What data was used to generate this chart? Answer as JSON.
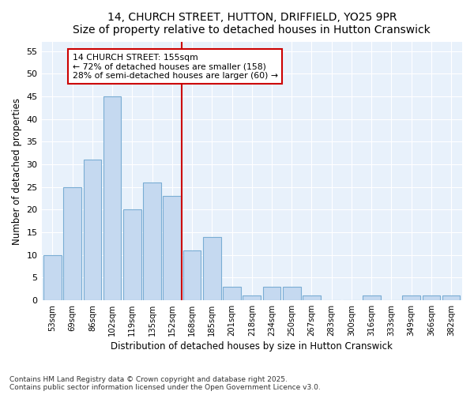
{
  "title1": "14, CHURCH STREET, HUTTON, DRIFFIELD, YO25 9PR",
  "title2": "Size of property relative to detached houses in Hutton Cranswick",
  "xlabel": "Distribution of detached houses by size in Hutton Cranswick",
  "ylabel": "Number of detached properties",
  "categories": [
    "53sqm",
    "69sqm",
    "86sqm",
    "102sqm",
    "119sqm",
    "135sqm",
    "152sqm",
    "168sqm",
    "185sqm",
    "201sqm",
    "218sqm",
    "234sqm",
    "250sqm",
    "267sqm",
    "283sqm",
    "300sqm",
    "316sqm",
    "333sqm",
    "349sqm",
    "366sqm",
    "382sqm"
  ],
  "values": [
    10,
    25,
    31,
    45,
    20,
    26,
    23,
    11,
    14,
    3,
    1,
    3,
    3,
    1,
    0,
    0,
    1,
    0,
    1,
    1,
    1
  ],
  "bar_color": "#c5d9f0",
  "bar_edge_color": "#7aadd4",
  "bg_color": "#ddeeff",
  "plot_bg_color": "#e8f1fb",
  "grid_color": "#ffffff",
  "vline_x": 6.5,
  "vline_color": "#cc0000",
  "annotation_text": "14 CHURCH STREET: 155sqm\n← 72% of detached houses are smaller (158)\n28% of semi-detached houses are larger (60) →",
  "annotation_box_color": "#ffffff",
  "annotation_border_color": "#cc0000",
  "footer": "Contains HM Land Registry data © Crown copyright and database right 2025.\nContains public sector information licensed under the Open Government Licence v3.0.",
  "ylim": [
    0,
    57
  ],
  "yticks": [
    0,
    5,
    10,
    15,
    20,
    25,
    30,
    35,
    40,
    45,
    50,
    55
  ],
  "fig_bg": "#ffffff",
  "title1_fontsize": 10,
  "title2_fontsize": 9
}
